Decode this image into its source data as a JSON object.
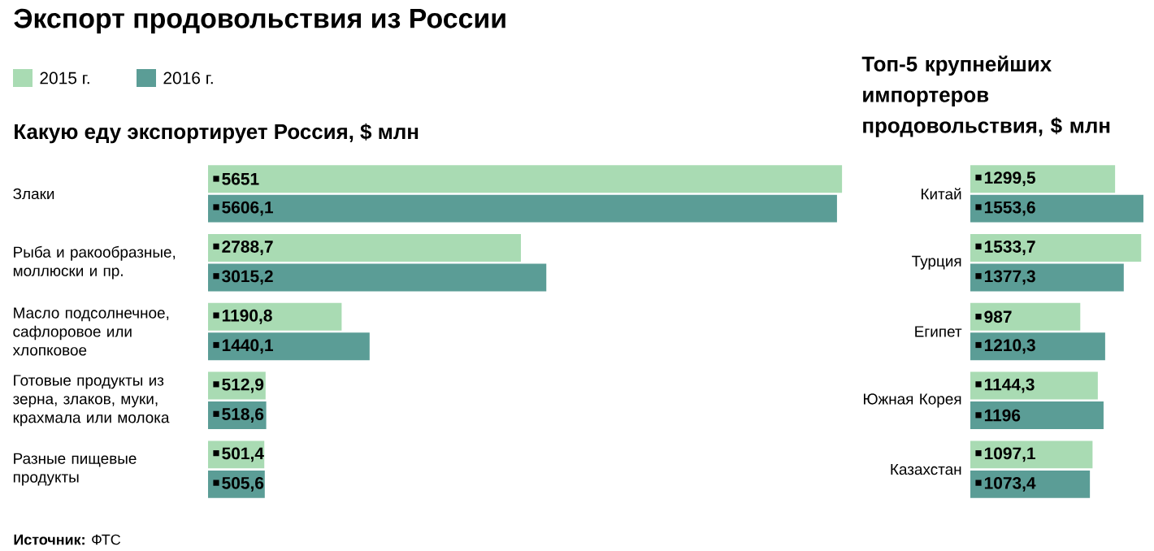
{
  "chart_data": [
    {
      "type": "bar",
      "orientation": "horizontal",
      "title": "Экспорт продовольствия из России",
      "subtitle": "Какую еду экспортирует Россия, $ млн",
      "legend": "top left",
      "categories": [
        "Злаки",
        "Рыба и ракообразные, моллюски и пр.",
        "Масло подсолнечное, сафлоровое или хлопковое",
        "Готовые продукты из зерна, злаков, муки, крахмала или молока",
        "Разные пищевые продукты"
      ],
      "series": [
        {
          "name": "2015 г.",
          "color": "#a9dbb3",
          "values": [
            5651,
            2788.7,
            1190.8,
            512.9,
            501.4
          ],
          "value_labels": [
            "5651",
            "2788,7",
            "1190,8",
            "512,9",
            "501,4"
          ]
        },
        {
          "name": "2016 г.",
          "color": "#5b9d96",
          "values": [
            5606.1,
            3015.2,
            1440.1,
            518.6,
            505.6
          ],
          "value_labels": [
            "5606,1",
            "3015,2",
            "1440,1",
            "518,6",
            "505,6"
          ]
        }
      ],
      "annotations": [
        "**Источник:** ФТС"
      ]
    },
    {
      "type": "bar",
      "orientation": "horizontal",
      "title": "Топ-5 крупнейших импортеров продовольствия, $ млн",
      "categories": [
        "Китай",
        "Турция",
        "Египет",
        "Южная Корея",
        "Казахстан"
      ],
      "series": [
        {
          "color": "#a9dbb3",
          "values": [
            1299.5,
            1533.7,
            987,
            1144.3,
            1097.1
          ],
          "value_labels": [
            "1299,5",
            "1533,7",
            "987",
            "1144,3",
            "1097,1"
          ]
        },
        {
          "color": "#5b9d96",
          "values": [
            1553.6,
            1377.3,
            1210.3,
            1196,
            1073.4
          ],
          "value_labels": [
            "1553,6",
            "1377,3",
            "1210,3",
            "1196",
            "1073,4"
          ]
        }
      ]
    }
  ]
}
